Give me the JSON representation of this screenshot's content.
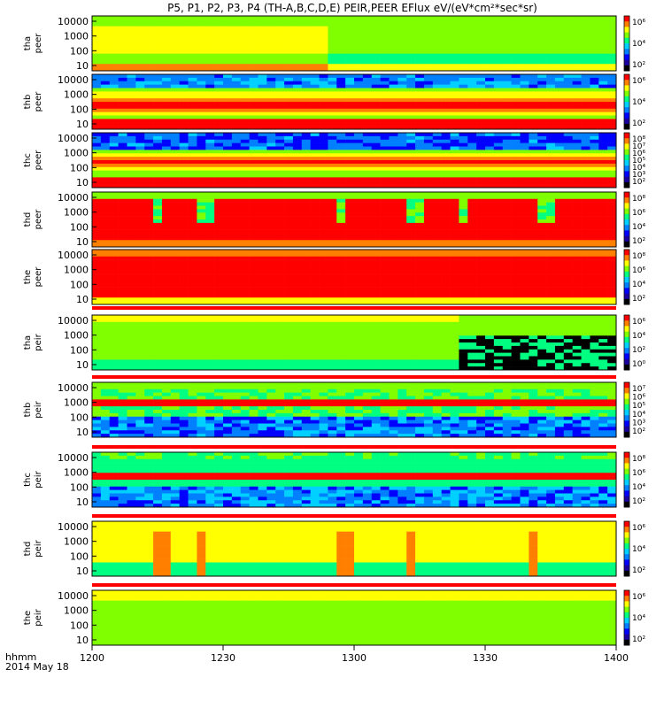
{
  "title": "P5, P1, P2, P3, P4 (TH-A,B,C,D,E) PEIR,PEER EFlux eV/(eV*cm²*sec*sr)",
  "footer": {
    "axis_label": "hhmm",
    "date": "2014 May 18"
  },
  "colors": {
    "scale": [
      "#000000",
      "#1a00a0",
      "#0000ff",
      "#0080ff",
      "#00d0ff",
      "#00ff80",
      "#80ff00",
      "#ffff00",
      "#ff8000",
      "#ff0000"
    ]
  },
  "chart_data": {
    "type": "heatmap",
    "x_tick_labels": [
      "1200",
      "1230",
      "1300",
      "1330",
      "1400"
    ],
    "x_range": [
      "12:00",
      "14:00"
    ],
    "y_scale": "log",
    "panels": [
      {
        "probe": "tha",
        "species": "peer",
        "y_ticks": [
          "10",
          "100",
          "1000",
          "10000"
        ],
        "cbar_ticks": [
          "10⁶",
          "10⁴",
          "10²"
        ],
        "pattern": "tha_peer"
      },
      {
        "probe": "thb",
        "species": "peer",
        "y_ticks": [
          "10",
          "100",
          "1000",
          "10000"
        ],
        "cbar_ticks": [
          "10⁶",
          "10⁴",
          "10²"
        ],
        "pattern": "thb_peer"
      },
      {
        "probe": "thc",
        "species": "peer",
        "y_ticks": [
          "10",
          "100",
          "1000",
          "10000"
        ],
        "cbar_ticks": [
          "10⁸",
          "10⁷",
          "10⁶",
          "10⁵",
          "10⁴",
          "10³",
          "10²"
        ],
        "pattern": "thc_peer"
      },
      {
        "probe": "thd",
        "species": "peer",
        "y_ticks": [
          "10",
          "100",
          "1000",
          "10000"
        ],
        "cbar_ticks": [
          "10⁸",
          "10⁶",
          "10⁴",
          "10²"
        ],
        "pattern": "thd_peer"
      },
      {
        "probe": "the",
        "species": "peer",
        "y_ticks": [
          "10",
          "100",
          "1000",
          "10000"
        ],
        "cbar_ticks": [
          "10⁸",
          "10⁶",
          "10⁴",
          "10²"
        ],
        "pattern": "the_peer"
      },
      {
        "probe": "tha",
        "species": "peir",
        "y_ticks": [
          "10",
          "100",
          "1000",
          "10000"
        ],
        "cbar_ticks": [
          "10⁶",
          "10⁴",
          "10²",
          "10⁰"
        ],
        "pattern": "tha_peir"
      },
      {
        "probe": "thb",
        "species": "peir",
        "y_ticks": [
          "10",
          "100",
          "1000",
          "10000"
        ],
        "cbar_ticks": [
          "10⁷",
          "10⁶",
          "10⁵",
          "10⁴",
          "10³",
          "10²"
        ],
        "pattern": "thb_peir"
      },
      {
        "probe": "thc",
        "species": "peir",
        "y_ticks": [
          "10",
          "100",
          "1000",
          "10000"
        ],
        "cbar_ticks": [
          "10⁸",
          "10⁶",
          "10⁴",
          "10²"
        ],
        "pattern": "thc_peir"
      },
      {
        "probe": "thd",
        "species": "peir",
        "y_ticks": [
          "10",
          "100",
          "1000",
          "10000"
        ],
        "cbar_ticks": [
          "10⁶",
          "10⁴",
          "10²"
        ],
        "pattern": "thd_peir"
      },
      {
        "probe": "the",
        "species": "peir",
        "y_ticks": [
          "10",
          "100",
          "1000",
          "10000"
        ],
        "cbar_ticks": [
          "10⁶",
          "10⁴",
          "10²"
        ],
        "pattern": "the_peir"
      }
    ]
  }
}
